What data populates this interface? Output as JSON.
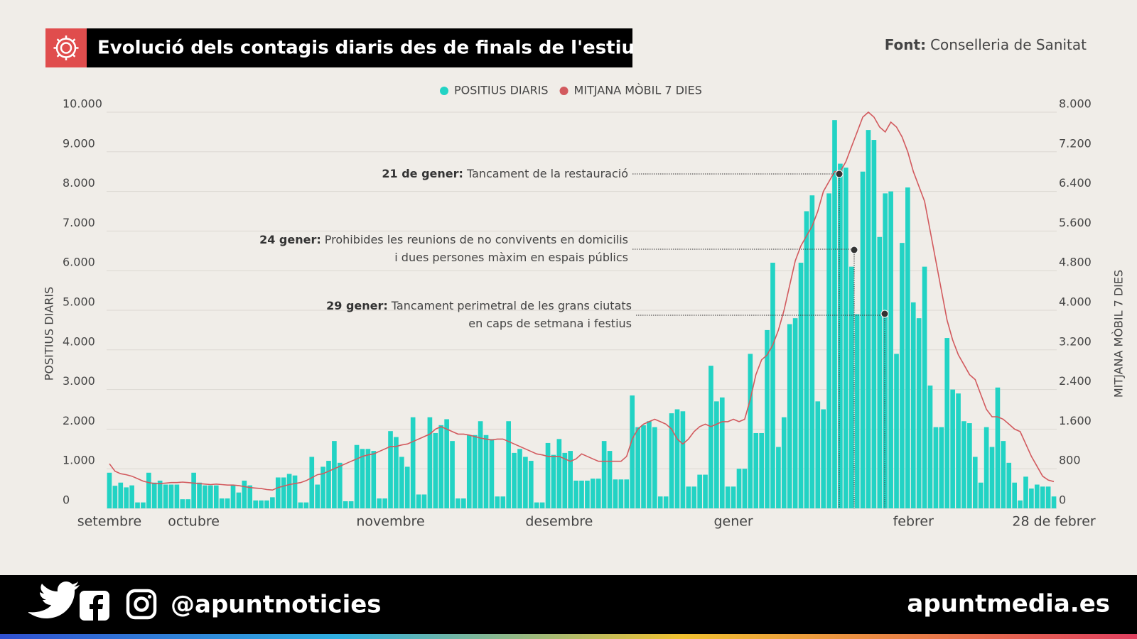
{
  "chart_data": {
    "type": "bar",
    "title": "Evolució dels contagis diaris des de finals de l'estiu",
    "source": {
      "label": "Font:",
      "text": "Conselleria de Sanitat"
    },
    "y_label": "POSITIUS DIARIS",
    "y2_label": "MITJANA MÒBIL 7 DIES",
    "grid": true,
    "legend": "top",
    "categories": [
      "setembre",
      null,
      null,
      null,
      null,
      null,
      null,
      null,
      null,
      null,
      null,
      null,
      null,
      null,
      null,
      "octubre",
      null,
      null,
      null,
      null,
      null,
      null,
      null,
      null,
      null,
      null,
      null,
      null,
      null,
      null,
      null,
      null,
      null,
      null,
      null,
      null,
      null,
      null,
      null,
      null,
      null,
      null,
      null,
      null,
      null,
      null,
      null,
      null,
      null,
      null,
      "novembre",
      null,
      null,
      null,
      null,
      null,
      null,
      null,
      null,
      null,
      null,
      null,
      null,
      null,
      null,
      null,
      null,
      null,
      null,
      null,
      null,
      null,
      null,
      null,
      null,
      null,
      null,
      null,
      null,
      null,
      "desembre",
      null,
      null,
      null,
      null,
      null,
      null,
      null,
      null,
      null,
      null,
      null,
      null,
      null,
      null,
      null,
      null,
      null,
      null,
      null,
      null,
      null,
      null,
      null,
      null,
      null,
      null,
      null,
      null,
      null,
      null,
      "gener",
      null,
      null,
      null,
      null,
      null,
      null,
      null,
      null,
      null,
      null,
      null,
      null,
      null,
      null,
      null,
      null,
      null,
      null,
      null,
      null,
      null,
      null,
      null,
      null,
      null,
      null,
      null,
      null,
      null,
      null,
      null,
      "febrer",
      null,
      null,
      null,
      null,
      null,
      null,
      null,
      null,
      null,
      null,
      null,
      null,
      null,
      null,
      null,
      null,
      null,
      null,
      null,
      null,
      null,
      null,
      null,
      null,
      "28 de febrer"
    ],
    "series": [
      {
        "name": "POSITIUS DIARIS",
        "color": "#22d3c4",
        "values": [
          900,
          570,
          650,
          530,
          580,
          150,
          150,
          900,
          650,
          700,
          600,
          600,
          600,
          230,
          230,
          900,
          650,
          580,
          580,
          580,
          250,
          250,
          580,
          400,
          700,
          580,
          200,
          200,
          200,
          280,
          780,
          780,
          870,
          830,
          150,
          150,
          1300,
          600,
          1050,
          1200,
          1700,
          1150,
          180,
          180,
          1600,
          1500,
          1500,
          1450,
          250,
          250,
          1950,
          1800,
          1300,
          1050,
          2300,
          350,
          350,
          2300,
          1900,
          2100,
          2250,
          1700,
          250,
          250,
          1850,
          1850,
          2200,
          1850,
          1750,
          300,
          300,
          2200,
          1400,
          1500,
          1300,
          1200,
          150,
          150,
          1650,
          1350,
          1750,
          1400,
          1450,
          700,
          700,
          700,
          750,
          750,
          1700,
          1450,
          730,
          730,
          730,
          2850,
          2050,
          2100,
          2200,
          2050,
          300,
          300,
          2400,
          2500,
          2450,
          550,
          550,
          850,
          850,
          3600,
          2700,
          2800,
          550,
          550,
          1000,
          1000,
          3900,
          1900,
          1900,
          4500,
          6200,
          1550,
          2300,
          4650,
          4800,
          6200,
          7500,
          7900,
          2700,
          2500,
          7950,
          9800,
          8700,
          8600,
          6100,
          4900,
          8500,
          9550,
          9300,
          6850,
          7950,
          8000,
          3900,
          6700,
          8100,
          5200,
          4800,
          6100,
          3100,
          2050,
          2050,
          4300,
          3000,
          2900,
          2200,
          2150,
          1300,
          650,
          2050,
          1550,
          3050,
          1700,
          1150,
          650,
          200,
          800,
          500,
          600,
          550,
          550,
          300
        ]
      },
      {
        "name": "MITJANA MÒBIL 7 DIES",
        "color": "#d25a5e",
        "axis": "y2",
        "values": [
          900,
          750,
          700,
          680,
          650,
          600,
          550,
          520,
          500,
          500,
          510,
          520,
          520,
          530,
          520,
          510,
          500,
          490,
          480,
          490,
          480,
          470,
          470,
          460,
          440,
          420,
          410,
          400,
          380,
          370,
          420,
          450,
          480,
          500,
          520,
          560,
          620,
          680,
          700,
          750,
          800,
          850,
          900,
          950,
          1000,
          1050,
          1080,
          1100,
          1150,
          1200,
          1250,
          1250,
          1280,
          1300,
          1350,
          1400,
          1450,
          1500,
          1600,
          1650,
          1600,
          1550,
          1500,
          1500,
          1480,
          1450,
          1420,
          1400,
          1380,
          1400,
          1400,
          1350,
          1300,
          1250,
          1200,
          1150,
          1100,
          1080,
          1050,
          1050,
          1050,
          1000,
          950,
          1000,
          1100,
          1050,
          1000,
          950,
          950,
          950,
          950,
          950,
          1050,
          1400,
          1600,
          1700,
          1750,
          1800,
          1750,
          1700,
          1600,
          1400,
          1300,
          1400,
          1550,
          1650,
          1700,
          1650,
          1700,
          1750,
          1750,
          1800,
          1750,
          1800,
          2200,
          2700,
          3000,
          3100,
          3300,
          3600,
          4000,
          4500,
          5000,
          5300,
          5500,
          5700,
          6000,
          6400,
          6600,
          6800,
          6800,
          7000,
          7300,
          7600,
          7900,
          8000,
          7900,
          7700,
          7600,
          7800,
          7700,
          7500,
          7200,
          6800,
          6500,
          6200,
          5600,
          5000,
          4400,
          3800,
          3400,
          3100,
          2900,
          2700,
          2600,
          2300,
          2000,
          1850,
          1850,
          1800,
          1700,
          1600,
          1550,
          1300,
          1050,
          850,
          650,
          570,
          540
        ]
      }
    ],
    "ylim": [
      0,
      10000
    ],
    "yticks": [
      0,
      {
        "value": 1000,
        "label": "1.000"
      },
      {
        "value": 2000,
        "label": "2.000"
      },
      {
        "value": 3000,
        "label": "3.000"
      },
      {
        "value": 4000,
        "label": "4.000"
      },
      {
        "value": 5000,
        "label": "5.000"
      },
      {
        "value": 6000,
        "label": "6.000"
      },
      {
        "value": 7000,
        "label": "7.000"
      },
      {
        "value": 8000,
        "label": "8.000"
      },
      {
        "value": 9000,
        "label": "9.000"
      },
      {
        "value": 10000,
        "label": "10.000"
      }
    ],
    "y2lim": [
      0,
      8000
    ],
    "y2ticks": [
      0,
      800,
      {
        "value": 1600,
        "label": "1.600"
      },
      {
        "value": 2400,
        "label": "2.400"
      },
      {
        "value": 3200,
        "label": "3.200"
      },
      {
        "value": 4000,
        "label": "4.000"
      },
      {
        "value": 4800,
        "label": "4.800"
      },
      {
        "value": 5600,
        "label": "5.600"
      },
      {
        "value": 6400,
        "label": "6.400"
      },
      {
        "value": 7200,
        "label": "7.200"
      },
      {
        "value": 8000,
        "label": "8.000"
      }
    ],
    "annotations": [
      {
        "bold": "21 de gener:",
        "lines": [
          "Tancament de la restauració"
        ]
      },
      {
        "bold": "24 gener:",
        "lines": [
          "Prohibides les reunions de no convivents en domicilis",
          "i dues persones màxim en espais públics"
        ]
      },
      {
        "bold": "29 gener:",
        "lines": [
          "Tancament perimetral de les grans ciutats",
          "en caps de setmana i festius"
        ]
      }
    ]
  },
  "footer": {
    "handle": "@apuntnoticies",
    "site": "apuntmedia.es"
  }
}
